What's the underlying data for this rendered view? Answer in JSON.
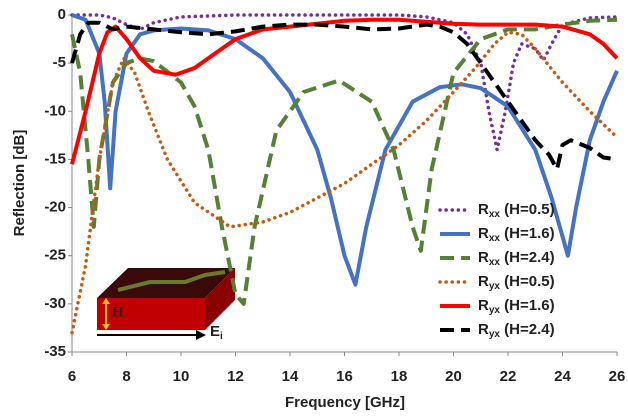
{
  "chart_data": {
    "type": "line",
    "xlabel": "Frequency [GHz]",
    "ylabel": "Reflection [dB]",
    "xlim": [
      6,
      26
    ],
    "xticks": [
      6,
      8,
      10,
      12,
      14,
      16,
      18,
      20,
      22,
      24,
      26
    ],
    "ylim": [
      -35,
      0
    ],
    "yticks": [
      0,
      -5,
      -10,
      -15,
      -20,
      -25,
      -30,
      -35
    ],
    "grid": false,
    "legend": "right",
    "series": [
      {
        "name": "Rxx (H=0.5)",
        "color": "#7030a0",
        "dash": "dotted",
        "x": [
          6,
          7,
          7.5,
          8,
          8.5,
          9,
          10,
          12,
          14,
          16,
          18,
          19,
          20,
          20.5,
          21,
          21.3,
          21.6,
          21.9,
          22.2,
          22.5,
          23,
          23.3,
          23.6,
          24,
          25,
          26
        ],
        "values": [
          0,
          0,
          -0.3,
          -1,
          -1.5,
          -0.8,
          -0.2,
          0,
          0,
          0,
          0,
          -0.2,
          -0.8,
          -2,
          -5,
          -10,
          -14,
          -10,
          -5,
          -3,
          -3.5,
          -4.7,
          -3,
          -1,
          -0.3,
          -0.2
        ]
      },
      {
        "name": "Rxx (H=1.6)",
        "color": "#4472c4",
        "dash": "solid",
        "x": [
          6,
          6.5,
          7,
          7.2,
          7.4,
          7.6,
          8,
          8.5,
          9,
          10,
          11,
          12,
          13,
          14,
          15,
          15.5,
          16,
          16.4,
          16.8,
          17.5,
          18.5,
          19.5,
          20.3,
          21,
          22,
          23,
          23.6,
          24,
          24.2,
          24.5,
          25,
          25.5,
          26
        ],
        "values": [
          0,
          -0.5,
          -4,
          -9,
          -18,
          -10,
          -4,
          -2,
          -1.6,
          -1.4,
          -1.6,
          -2.5,
          -4.5,
          -8,
          -14,
          -19,
          -25,
          -28,
          -22,
          -14,
          -9,
          -7.5,
          -7.2,
          -7.6,
          -9.5,
          -14,
          -19,
          -23,
          -25,
          -20,
          -13,
          -9,
          -5.8
        ]
      },
      {
        "name": "Rxx (H=2.4)",
        "color": "#548235",
        "dash": "dashed",
        "x": [
          6,
          6.3,
          6.6,
          6.8,
          7,
          7.5,
          8,
          8.5,
          9,
          10,
          10.5,
          11,
          11.5,
          12,
          12.3,
          12.7,
          13.5,
          14.5,
          15.8,
          17,
          17.8,
          18.5,
          18.8,
          19.2,
          20,
          21,
          22,
          23,
          24,
          25,
          26
        ],
        "values": [
          -2,
          -6,
          -15,
          -22,
          -15,
          -7,
          -5,
          -4.5,
          -4.8,
          -7,
          -9.5,
          -14,
          -22,
          -29,
          -30,
          -22,
          -12,
          -8,
          -6.8,
          -9,
          -14,
          -22,
          -24.5,
          -16,
          -6,
          -2.5,
          -1.5,
          -1.5,
          -1,
          -0.6,
          -0.5
        ]
      },
      {
        "name": "Ryx (H=0.5)",
        "color": "#c55a11",
        "dash": "dotted",
        "x": [
          6,
          6.5,
          7,
          7.5,
          7.9,
          8.3,
          8.8,
          9.5,
          10.5,
          11.8,
          13,
          14,
          15,
          16,
          17,
          18,
          19,
          20,
          20.8,
          21.5,
          22,
          22.5,
          23,
          24,
          25,
          26
        ],
        "values": [
          -33,
          -26,
          -15,
          -7,
          -4.5,
          -6,
          -10,
          -15,
          -19.5,
          -22,
          -21.5,
          -20.5,
          -19,
          -17.5,
          -15.5,
          -13.5,
          -11,
          -8,
          -5.5,
          -3,
          -1.8,
          -2,
          -3.5,
          -7,
          -10,
          -12.7
        ]
      },
      {
        "name": "Ryx (H=1.6)",
        "color": "#ff0000",
        "dash": "solid",
        "x": [
          6,
          6.5,
          7,
          7.3,
          7.6,
          8,
          8.5,
          9,
          9.8,
          10.5,
          11,
          12,
          13,
          14,
          15,
          16,
          17,
          18,
          19,
          20,
          21,
          22,
          23,
          24,
          25,
          25.5,
          26
        ],
        "values": [
          -15.5,
          -10,
          -4,
          -1.8,
          -1.2,
          -2.5,
          -4.5,
          -5.8,
          -6.2,
          -5.5,
          -4.5,
          -2.5,
          -1.5,
          -1.2,
          -0.9,
          -0.6,
          -0.5,
          -0.5,
          -0.7,
          -0.9,
          -1,
          -1,
          -1,
          -1.2,
          -2,
          -3,
          -4.5
        ]
      },
      {
        "name": "Ryx (H=2.4)",
        "color": "#000000",
        "dash": "dashed",
        "x": [
          6,
          6.3,
          6.6,
          7,
          7.5,
          8,
          9,
          10,
          11,
          12,
          13,
          14,
          15,
          16,
          17,
          18,
          19,
          19.5,
          20,
          20.5,
          21,
          21.5,
          22,
          22.5,
          23,
          23.5,
          23.8,
          24,
          24.3,
          25,
          25.5,
          26
        ],
        "values": [
          -5,
          -2,
          -0.8,
          -0.8,
          -1.5,
          -1.2,
          -1.5,
          -1.8,
          -2,
          -1.7,
          -1.2,
          -1,
          -1,
          -1.2,
          -1.5,
          -1.4,
          -1,
          -1.2,
          -1.8,
          -3,
          -5,
          -7,
          -9,
          -11,
          -13,
          -14.5,
          -16,
          -13.5,
          -13,
          -13.8,
          -14.8,
          -15
        ]
      }
    ],
    "inset": {
      "height_label": "H",
      "field_label": "Ei"
    }
  }
}
